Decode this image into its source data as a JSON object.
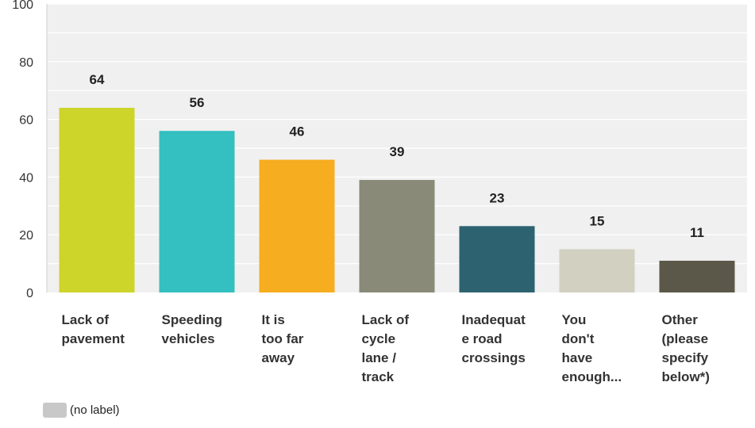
{
  "chart_data": {
    "type": "bar",
    "categories": [
      [
        "Lack of",
        "pavement"
      ],
      [
        "Speeding",
        "vehicles"
      ],
      [
        "It is",
        "too far",
        "away"
      ],
      [
        "Lack of",
        "cycle",
        "lane /",
        "track"
      ],
      [
        "Inadequat",
        "e road",
        "crossings"
      ],
      [
        "You",
        "don't",
        "have",
        "enough..."
      ],
      [
        "Other",
        "(please",
        "specify",
        "below*)"
      ]
    ],
    "values": [
      64,
      56,
      46,
      39,
      23,
      15,
      11
    ],
    "colors": [
      "#cdd42a",
      "#34bfc0",
      "#f6ad1f",
      "#898a78",
      "#2d6371",
      "#d2d0c1",
      "#5b5849"
    ],
    "ylim": [
      0,
      100
    ],
    "yticks": [
      0,
      20,
      40,
      60,
      80,
      100
    ],
    "grid": true,
    "plot_background": "#f0f0f0",
    "legend": {
      "position": "bottom-left",
      "label": "(no label)",
      "color": "#c8c8c8"
    }
  }
}
